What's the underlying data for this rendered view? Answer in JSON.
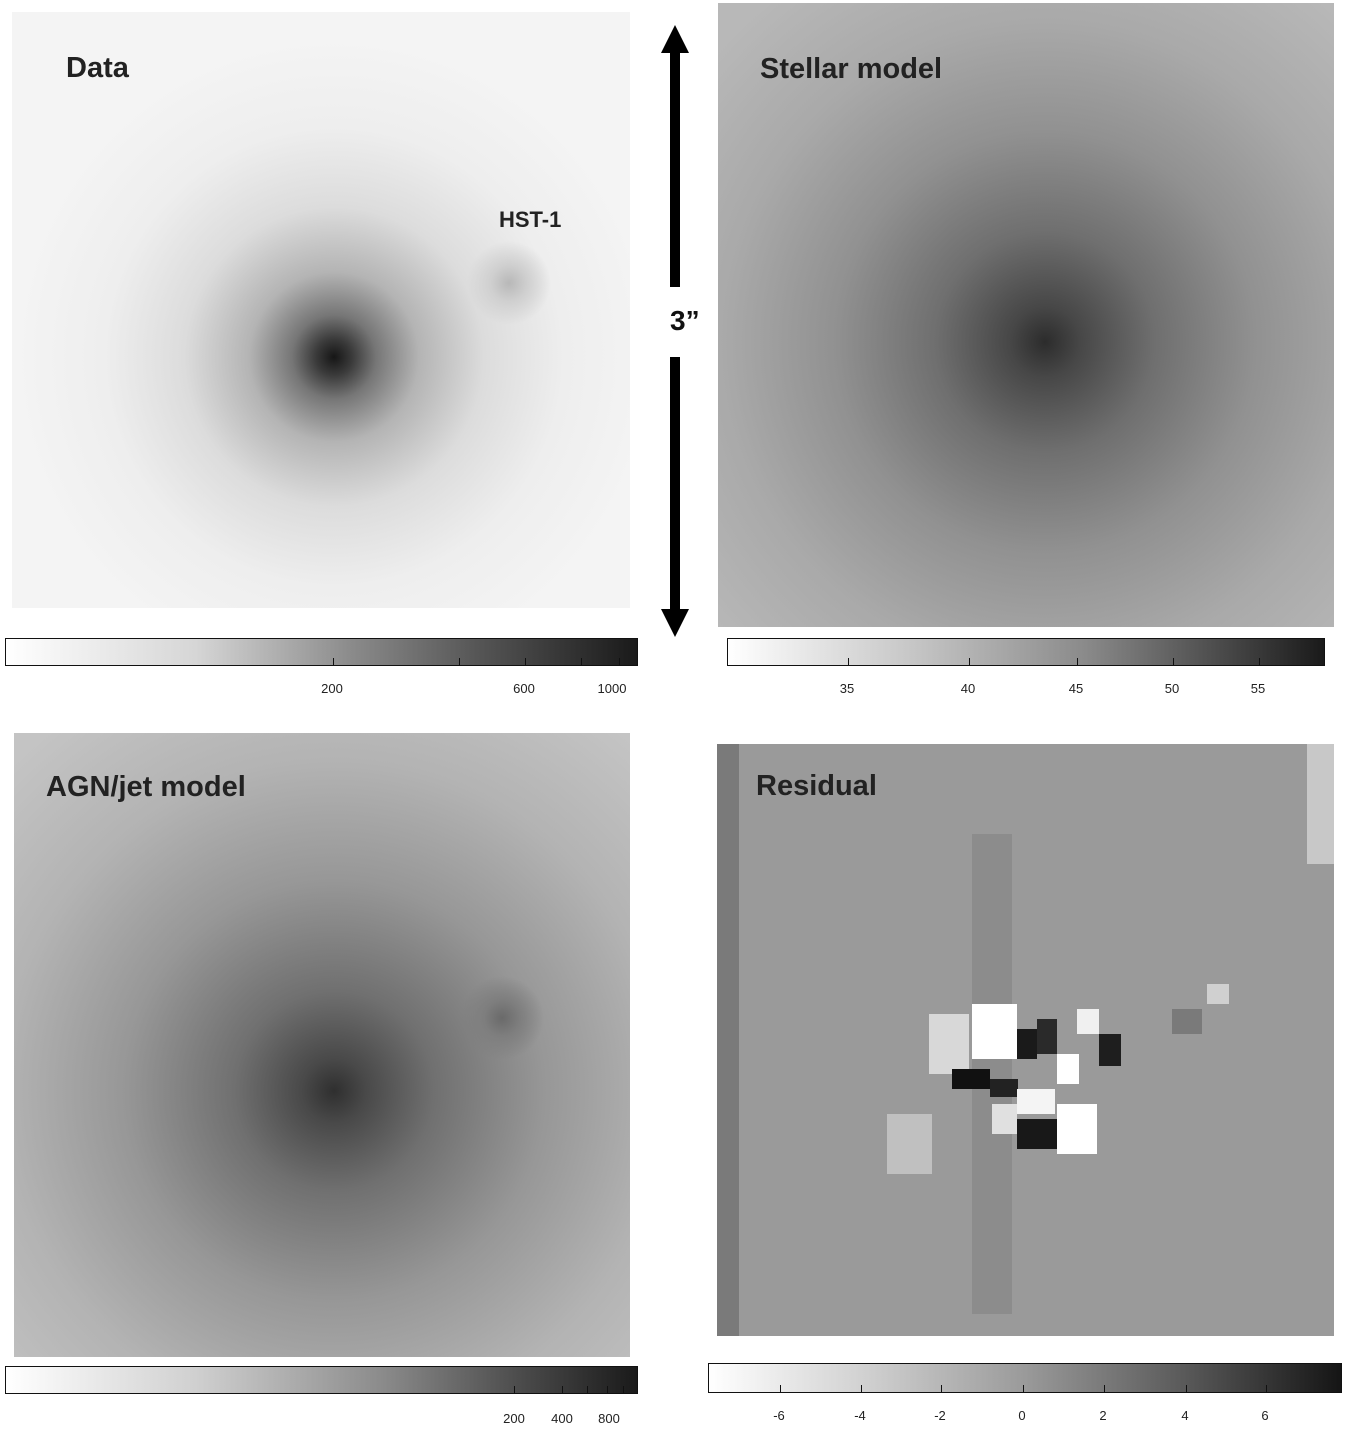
{
  "panels": {
    "data": {
      "label": "Data",
      "annotation": "HST-1"
    },
    "stellar": {
      "label": "Stellar model"
    },
    "agn": {
      "label": "AGN/jet model"
    },
    "residual": {
      "label": "Residual"
    }
  },
  "scale_bar": {
    "label": "3”"
  },
  "colorbars": {
    "data": {
      "ticks": [
        "200",
        "600",
        "1000"
      ]
    },
    "stellar": {
      "ticks": [
        "35",
        "40",
        "45",
        "50",
        "55"
      ]
    },
    "agn": {
      "ticks": [
        "200",
        "400",
        "800"
      ]
    },
    "residual": {
      "ticks": [
        "-6",
        "-4",
        "-2",
        "0",
        "2",
        "4",
        "6"
      ]
    }
  },
  "colors": {
    "ink": "#111111",
    "background": "#ffffff"
  }
}
